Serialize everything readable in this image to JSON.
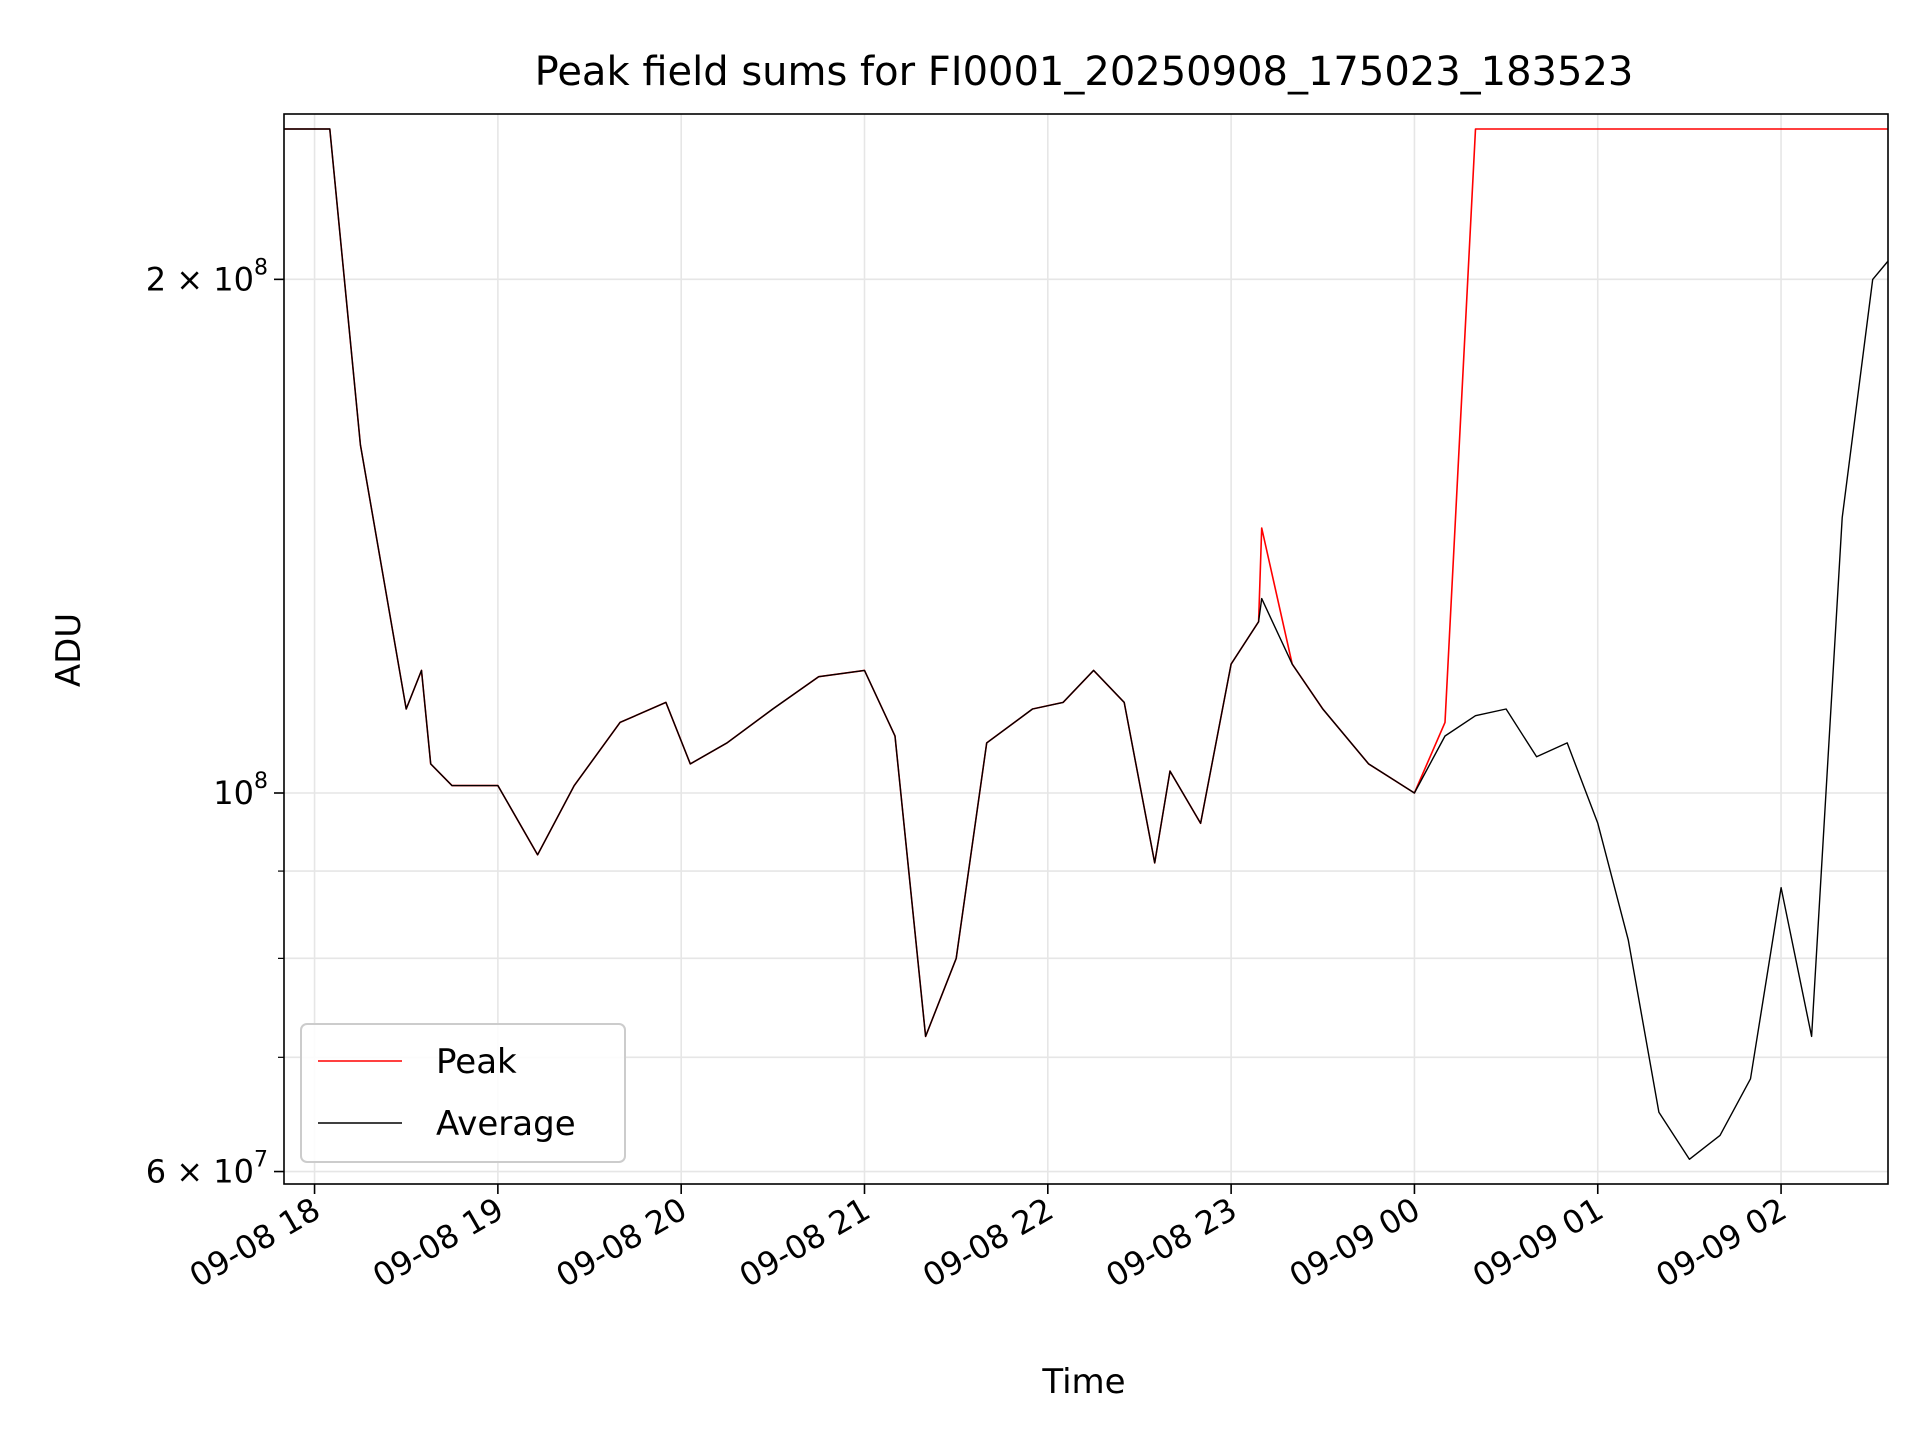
{
  "chart_data": {
    "type": "line",
    "title": "Peak field sums for FI0001_20250908_175023_183523",
    "xlabel": "Time",
    "ylabel": "ADU",
    "y_scale": "log",
    "ylim": [
      59000000,
      250000000
    ],
    "xlim": [
      "2025-09-08 17:50",
      "2025-09-09 02:35"
    ],
    "x_ticks": [
      "09-08 18",
      "09-08 19",
      "09-08 20",
      "09-08 21",
      "09-08 22",
      "09-08 23",
      "09-09 00",
      "09-09 01",
      "09-09 02"
    ],
    "x_tick_times": [
      "2025-09-08 18:00",
      "2025-09-08 19:00",
      "2025-09-08 20:00",
      "2025-09-08 21:00",
      "2025-09-08 22:00",
      "2025-09-08 23:00",
      "2025-09-09 00:00",
      "2025-09-09 01:00",
      "2025-09-09 02:00"
    ],
    "y_ticks": [
      {
        "value": 200000000,
        "mantissa": "2",
        "exponent": "8",
        "times": "×",
        "base": "10"
      },
      {
        "value": 100000000,
        "mantissa": "",
        "exponent": "8",
        "times": "",
        "base": "10"
      },
      {
        "value": 60000000,
        "mantissa": "6",
        "exponent": "7",
        "times": "×",
        "base": "10"
      }
    ],
    "y_minor_ticks": [
      70000000,
      80000000,
      90000000
    ],
    "grid": true,
    "legend_position": "lower-left",
    "series": [
      {
        "name": "Peak",
        "color": "#ff0000",
        "x": [
          "2025-09-08 17:50",
          "2025-09-08 18:05",
          "2025-09-08 18:15",
          "2025-09-08 18:30",
          "2025-09-08 18:35",
          "2025-09-08 18:38",
          "2025-09-08 18:45",
          "2025-09-08 19:00",
          "2025-09-08 19:13",
          "2025-09-08 19:25",
          "2025-09-08 19:40",
          "2025-09-08 19:55",
          "2025-09-08 20:03",
          "2025-09-08 20:15",
          "2025-09-08 20:30",
          "2025-09-08 20:45",
          "2025-09-08 21:00",
          "2025-09-08 21:10",
          "2025-09-08 21:20",
          "2025-09-08 21:30",
          "2025-09-08 21:40",
          "2025-09-08 21:55",
          "2025-09-08 22:05",
          "2025-09-08 22:15",
          "2025-09-08 22:25",
          "2025-09-08 22:35",
          "2025-09-08 22:40",
          "2025-09-08 22:50",
          "2025-09-08 23:00",
          "2025-09-08 23:09",
          "2025-09-08 23:10",
          "2025-09-08 23:20",
          "2025-09-08 23:30",
          "2025-09-08 23:45",
          "2025-09-09 00:00",
          "2025-09-09 00:10",
          "2025-09-09 00:20",
          "2025-09-09 00:30",
          "2025-09-09 00:40",
          "2025-09-09 00:50",
          "2025-09-09 01:00",
          "2025-09-09 01:10",
          "2025-09-09 01:20",
          "2025-09-09 01:30",
          "2025-09-09 01:40",
          "2025-09-09 01:50",
          "2025-09-09 02:00",
          "2025-09-09 02:10",
          "2025-09-09 02:20",
          "2025-09-09 02:30",
          "2025-09-09 02:35"
        ],
        "y": [
          245000000,
          245000000,
          160000000,
          112000000,
          118000000,
          104000000,
          101000000,
          101000000,
          92000000,
          101000000,
          110000000,
          113000000,
          104000000,
          107000000,
          112000000,
          117000000,
          118000000,
          108000000,
          72000000,
          80000000,
          107000000,
          112000000,
          113000000,
          118000000,
          113000000,
          91000000,
          103000000,
          96000000,
          119000000,
          126000000,
          143000000,
          119000000,
          112000000,
          104000000,
          100000000,
          110000000,
          245000000,
          245000000,
          245000000,
          245000000,
          245000000,
          245000000,
          245000000,
          245000000,
          245000000,
          245000000,
          245000000,
          245000000,
          245000000,
          245000000,
          245000000
        ]
      },
      {
        "name": "Average",
        "color": "#000000",
        "x": [
          "2025-09-08 17:50",
          "2025-09-08 18:05",
          "2025-09-08 18:15",
          "2025-09-08 18:30",
          "2025-09-08 18:35",
          "2025-09-08 18:38",
          "2025-09-08 18:45",
          "2025-09-08 19:00",
          "2025-09-08 19:13",
          "2025-09-08 19:25",
          "2025-09-08 19:40",
          "2025-09-08 19:55",
          "2025-09-08 20:03",
          "2025-09-08 20:15",
          "2025-09-08 20:30",
          "2025-09-08 20:45",
          "2025-09-08 21:00",
          "2025-09-08 21:10",
          "2025-09-08 21:20",
          "2025-09-08 21:30",
          "2025-09-08 21:40",
          "2025-09-08 21:55",
          "2025-09-08 22:05",
          "2025-09-08 22:15",
          "2025-09-08 22:25",
          "2025-09-08 22:35",
          "2025-09-08 22:40",
          "2025-09-08 22:50",
          "2025-09-08 23:00",
          "2025-09-08 23:09",
          "2025-09-08 23:10",
          "2025-09-08 23:20",
          "2025-09-08 23:30",
          "2025-09-08 23:45",
          "2025-09-09 00:00",
          "2025-09-09 00:10",
          "2025-09-09 00:20",
          "2025-09-09 00:30",
          "2025-09-09 00:40",
          "2025-09-09 00:50",
          "2025-09-09 01:00",
          "2025-09-09 01:10",
          "2025-09-09 01:20",
          "2025-09-09 01:30",
          "2025-09-09 01:40",
          "2025-09-09 01:50",
          "2025-09-09 02:00",
          "2025-09-09 02:10",
          "2025-09-09 02:20",
          "2025-09-09 02:30",
          "2025-09-09 02:35"
        ],
        "y": [
          245000000,
          245000000,
          160000000,
          112000000,
          118000000,
          104000000,
          101000000,
          101000000,
          92000000,
          101000000,
          110000000,
          113000000,
          104000000,
          107000000,
          112000000,
          117000000,
          118000000,
          108000000,
          72000000,
          80000000,
          107000000,
          112000000,
          113000000,
          118000000,
          113000000,
          91000000,
          103000000,
          96000000,
          119000000,
          126000000,
          130000000,
          119000000,
          112000000,
          104000000,
          100000000,
          108000000,
          111000000,
          112000000,
          105000000,
          107000000,
          96000000,
          82000000,
          65000000,
          61000000,
          63000000,
          68000000,
          88000000,
          72000000,
          145000000,
          200000000,
          205000000
        ]
      }
    ]
  }
}
